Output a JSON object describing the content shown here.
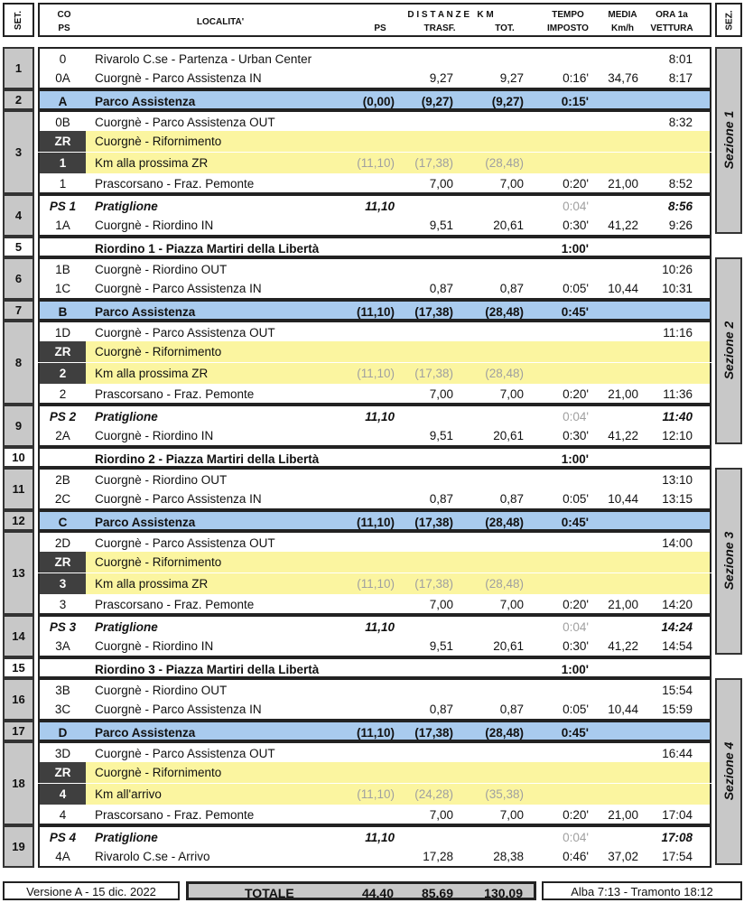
{
  "header": {
    "set": "SET.",
    "co": "CO",
    "co_ps": "PS",
    "localita": "LOCALITA'",
    "distanze": "D I S T A N Z E   K M",
    "ps": "PS",
    "trasf": "TRASF.",
    "tot": "TOT.",
    "tempo1": "TEMPO",
    "tempo2": "IMPOSTO",
    "media1": "MEDIA",
    "media2": "Km/h",
    "ora1": "ORA 1a",
    "ora2": "VETTURA",
    "sez": "SEZ."
  },
  "colors": {
    "assistenza": "#a9cbee",
    "rifornimento": "#fbf5a0",
    "zr_cell": "#3f3f3f",
    "set_cell": "#c8c8c8"
  },
  "sets": [
    {
      "n": "1",
      "rows": [
        [
          "0",
          "Rivarolo C.se - Partenza - Urban Center",
          "",
          "",
          "",
          "",
          "",
          "8:01",
          ""
        ],
        [
          "0A",
          "Cuorgnè - Parco Assistenza IN",
          "",
          "9,27",
          "9,27",
          "0:16'",
          "34,76",
          "8:17",
          ""
        ]
      ]
    },
    {
      "n": "2",
      "rows": [
        [
          "A",
          "Parco Assistenza",
          "(0,00)",
          "(9,27)",
          "(9,27)",
          "0:15'",
          "",
          "",
          "blue"
        ]
      ]
    },
    {
      "n": "3",
      "rows": [
        [
          "0B",
          "Cuorgnè - Parco Assistenza OUT",
          "",
          "",
          "",
          "",
          "",
          "8:32",
          ""
        ],
        [
          "ZR",
          "Cuorgnè - Rifornimento",
          "",
          "",
          "",
          "",
          "",
          "",
          "zr"
        ],
        [
          "1",
          "Km alla prossima ZR",
          "(11,10)",
          "(17,38)",
          "(28,48)",
          "",
          "",
          "",
          "zr"
        ],
        [
          "1",
          "Prascorsano - Fraz. Pemonte",
          "",
          "7,00",
          "7,00",
          "0:20'",
          "21,00",
          "8:52",
          ""
        ]
      ]
    },
    {
      "n": "4",
      "rows": [
        [
          "PS 1",
          "Pratiglione",
          "11,10",
          "",
          "",
          "0:04'",
          "",
          "8:56",
          "ps"
        ],
        [
          "1A",
          "Cuorgnè - Riordino IN",
          "",
          "9,51",
          "20,61",
          "0:30'",
          "41,22",
          "9:26",
          ""
        ]
      ]
    },
    {
      "n": "5",
      "rows": [
        [
          "",
          "Riordino 1 - Piazza Martiri della Libertà",
          "",
          "",
          "",
          "1:00'",
          "",
          "",
          "rio"
        ]
      ]
    },
    {
      "n": "6",
      "rows": [
        [
          "1B",
          "Cuorgnè - Riordino OUT",
          "",
          "",
          "",
          "",
          "",
          "10:26",
          ""
        ],
        [
          "1C",
          "Cuorgnè - Parco Assistenza IN",
          "",
          "0,87",
          "0,87",
          "0:05'",
          "10,44",
          "10:31",
          ""
        ]
      ]
    },
    {
      "n": "7",
      "rows": [
        [
          "B",
          "Parco Assistenza",
          "(11,10)",
          "(17,38)",
          "(28,48)",
          "0:45'",
          "",
          "",
          "blue"
        ]
      ]
    },
    {
      "n": "8",
      "rows": [
        [
          "1D",
          "Cuorgnè - Parco Assistenza OUT",
          "",
          "",
          "",
          "",
          "",
          "11:16",
          ""
        ],
        [
          "ZR",
          "Cuorgnè - Rifornimento",
          "",
          "",
          "",
          "",
          "",
          "",
          "zr"
        ],
        [
          "2",
          "Km alla prossima ZR",
          "(11,10)",
          "(17,38)",
          "(28,48)",
          "",
          "",
          "",
          "zr"
        ],
        [
          "2",
          "Prascorsano - Fraz. Pemonte",
          "",
          "7,00",
          "7,00",
          "0:20'",
          "21,00",
          "11:36",
          ""
        ]
      ]
    },
    {
      "n": "9",
      "rows": [
        [
          "PS 2",
          "Pratiglione",
          "11,10",
          "",
          "",
          "0:04'",
          "",
          "11:40",
          "ps"
        ],
        [
          "2A",
          "Cuorgnè - Riordino IN",
          "",
          "9,51",
          "20,61",
          "0:30'",
          "41,22",
          "12:10",
          ""
        ]
      ]
    },
    {
      "n": "10",
      "rows": [
        [
          "",
          "Riordino 2 - Piazza Martiri della Libertà",
          "",
          "",
          "",
          "1:00'",
          "",
          "",
          "rio"
        ]
      ]
    },
    {
      "n": "11",
      "rows": [
        [
          "2B",
          "Cuorgnè - Riordino OUT",
          "",
          "",
          "",
          "",
          "",
          "13:10",
          ""
        ],
        [
          "2C",
          "Cuorgnè - Parco Assistenza IN",
          "",
          "0,87",
          "0,87",
          "0:05'",
          "10,44",
          "13:15",
          ""
        ]
      ]
    },
    {
      "n": "12",
      "rows": [
        [
          "C",
          "Parco Assistenza",
          "(11,10)",
          "(17,38)",
          "(28,48)",
          "0:45'",
          "",
          "",
          "blue"
        ]
      ]
    },
    {
      "n": "13",
      "rows": [
        [
          "2D",
          "Cuorgnè - Parco Assistenza OUT",
          "",
          "",
          "",
          "",
          "",
          "14:00",
          ""
        ],
        [
          "ZR",
          "Cuorgnè - Rifornimento",
          "",
          "",
          "",
          "",
          "",
          "",
          "zr"
        ],
        [
          "3",
          "Km alla prossima ZR",
          "(11,10)",
          "(17,38)",
          "(28,48)",
          "",
          "",
          "",
          "zr"
        ],
        [
          "3",
          "Prascorsano - Fraz. Pemonte",
          "",
          "7,00",
          "7,00",
          "0:20'",
          "21,00",
          "14:20",
          ""
        ]
      ]
    },
    {
      "n": "14",
      "rows": [
        [
          "PS 3",
          "Pratiglione",
          "11,10",
          "",
          "",
          "0:04'",
          "",
          "14:24",
          "ps"
        ],
        [
          "3A",
          "Cuorgnè - Riordino IN",
          "",
          "9,51",
          "20,61",
          "0:30'",
          "41,22",
          "14:54",
          ""
        ]
      ]
    },
    {
      "n": "15",
      "rows": [
        [
          "",
          "Riordino 3 - Piazza Martiri della Libertà",
          "",
          "",
          "",
          "1:00'",
          "",
          "",
          "rio"
        ]
      ]
    },
    {
      "n": "16",
      "rows": [
        [
          "3B",
          "Cuorgnè - Riordino OUT",
          "",
          "",
          "",
          "",
          "",
          "15:54",
          ""
        ],
        [
          "3C",
          "Cuorgnè - Parco Assistenza IN",
          "",
          "0,87",
          "0,87",
          "0:05'",
          "10,44",
          "15:59",
          ""
        ]
      ]
    },
    {
      "n": "17",
      "rows": [
        [
          "D",
          "Parco Assistenza",
          "(11,10)",
          "(17,38)",
          "(28,48)",
          "0:45'",
          "",
          "",
          "blue"
        ]
      ]
    },
    {
      "n": "18",
      "rows": [
        [
          "3D",
          "Cuorgnè - Parco Assistenza OUT",
          "",
          "",
          "",
          "",
          "",
          "16:44",
          ""
        ],
        [
          "ZR",
          "Cuorgnè - Rifornimento",
          "",
          "",
          "",
          "",
          "",
          "",
          "zr"
        ],
        [
          "4",
          "Km all'arrivo",
          "(11,10)",
          "(24,28)",
          "(35,38)",
          "",
          "",
          "",
          "zr"
        ],
        [
          "4",
          "Prascorsano - Fraz. Pemonte",
          "",
          "7,00",
          "7,00",
          "0:20'",
          "21,00",
          "17:04",
          ""
        ]
      ]
    },
    {
      "n": "19",
      "rows": [
        [
          "PS 4",
          "Pratiglione",
          "11,10",
          "",
          "",
          "0:04'",
          "",
          "17:08",
          "ps"
        ],
        [
          "4A",
          "Rivarolo C.se - Arrivo",
          "",
          "17,28",
          "28,38",
          "0:46'",
          "37,02",
          "17:54",
          ""
        ]
      ]
    }
  ],
  "sections": [
    {
      "label": "Sezione 1",
      "first_set": 0,
      "last_set": 3
    },
    {
      "label": "Sezione 2",
      "first_set": 5,
      "last_set": 8
    },
    {
      "label": "Sezione 3",
      "first_set": 10,
      "last_set": 13
    },
    {
      "label": "Sezione 4",
      "first_set": 15,
      "last_set": 18
    }
  ],
  "footer": {
    "version": "Versione A - 15 dic. 2022",
    "totale_label": "TOTALE",
    "totale_ps": "44,40",
    "totale_trasf": "85,69",
    "totale_tot": "130,09",
    "sun": "Alba 7:13 - Tramonto 18:12"
  }
}
